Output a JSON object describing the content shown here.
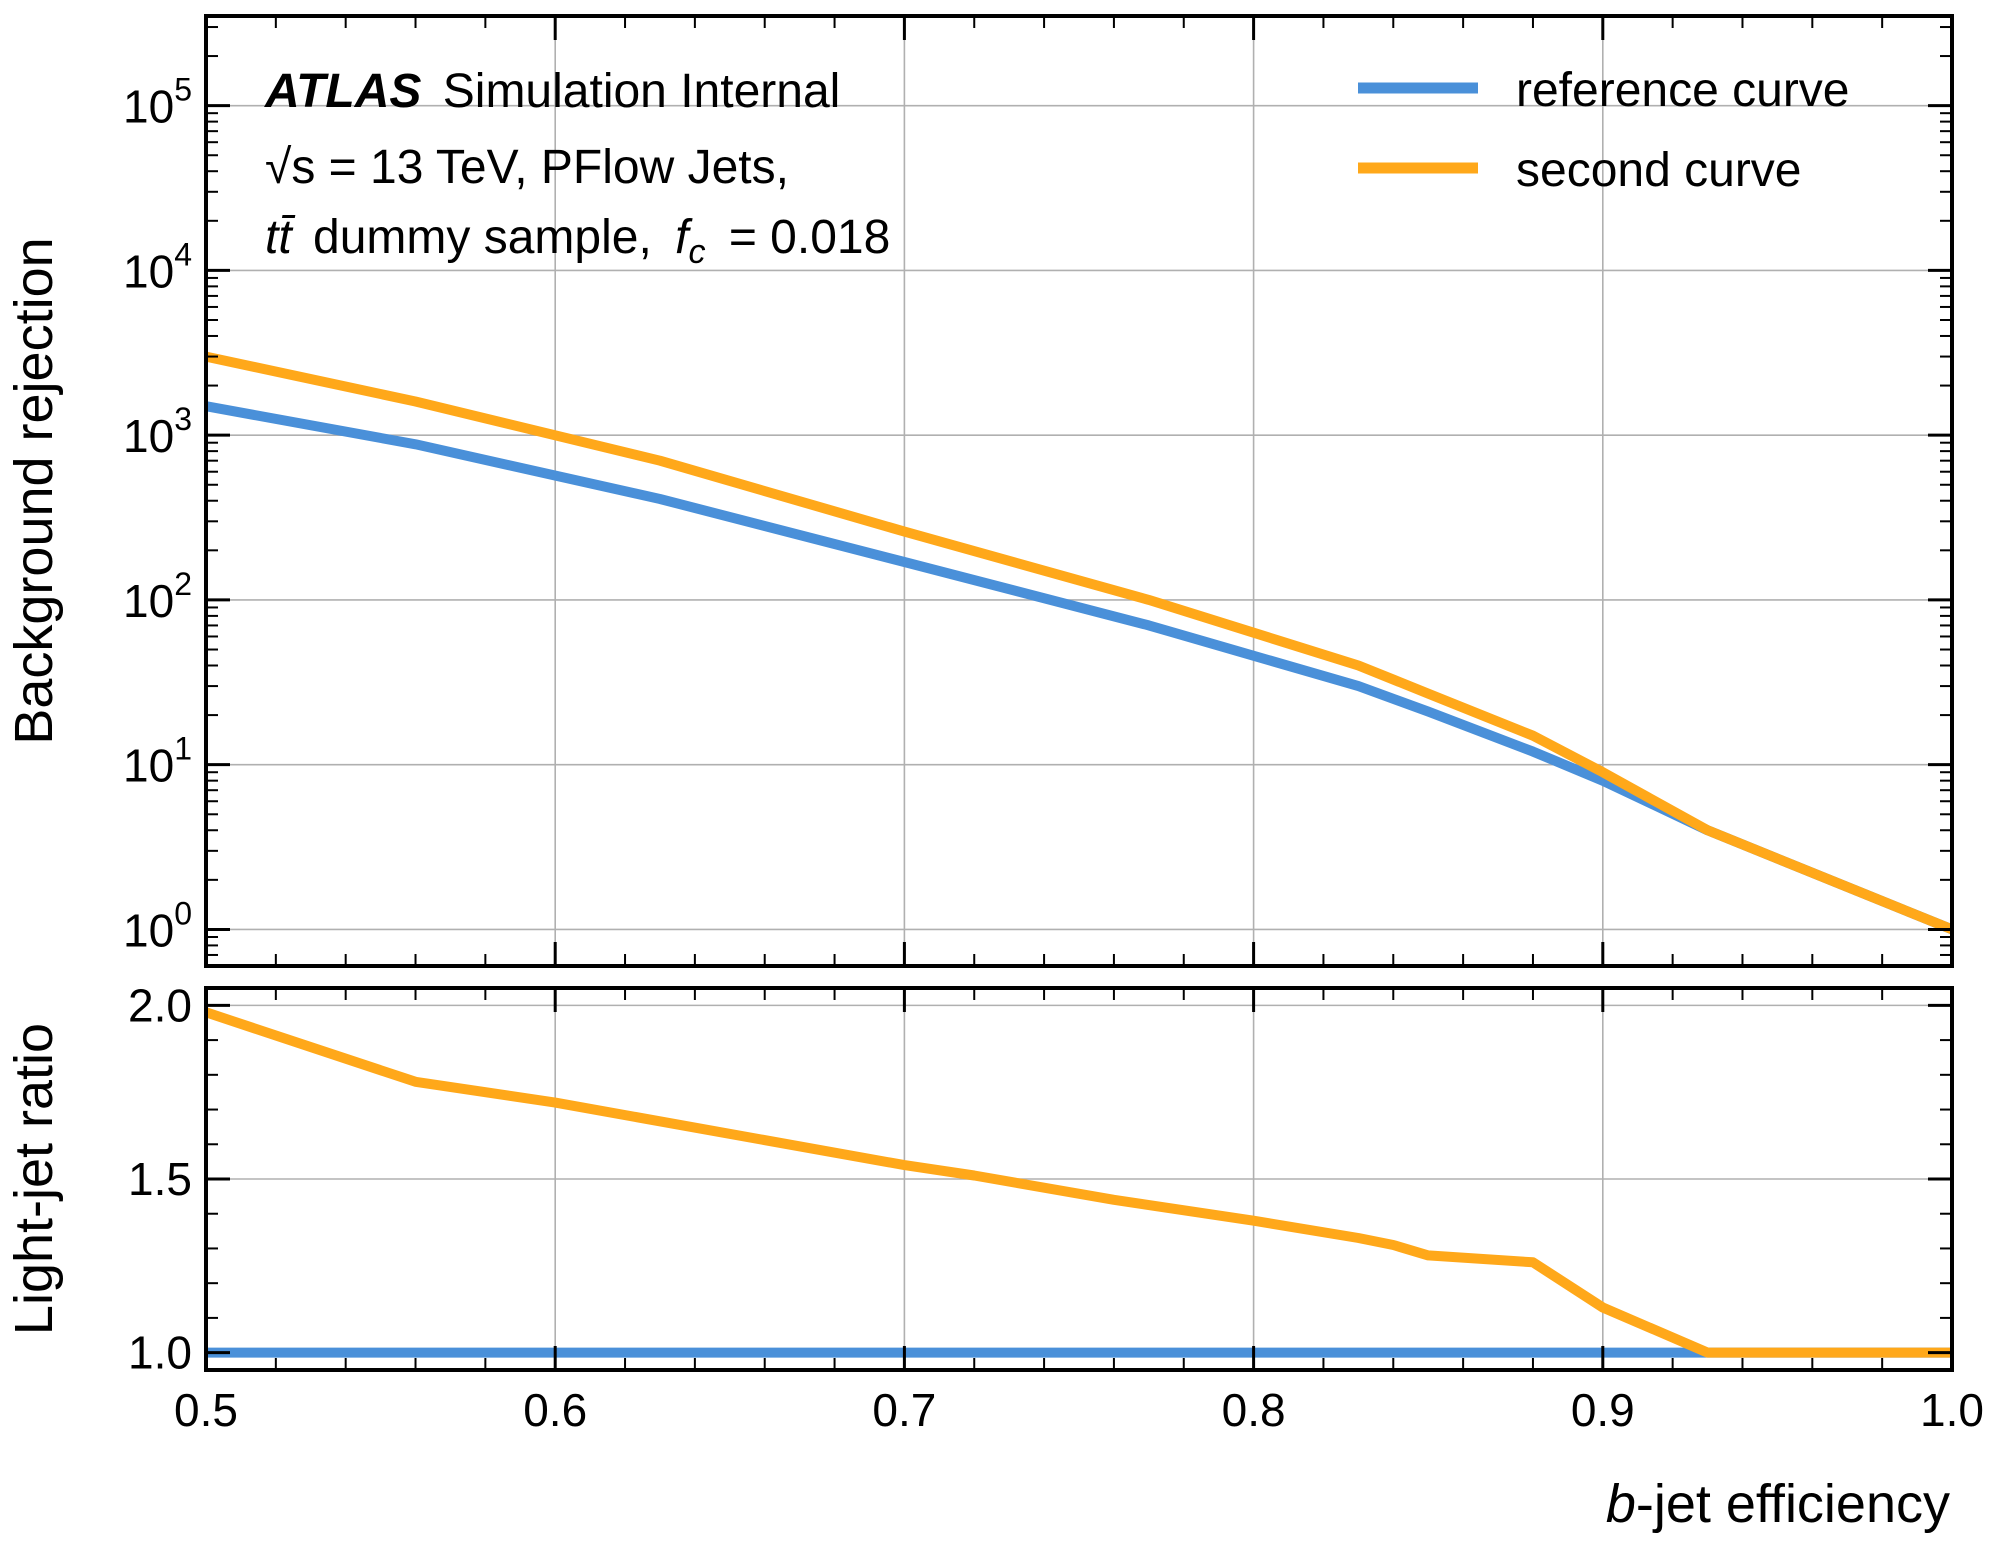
{
  "annotations": {
    "line1_bold": "ATLAS",
    "line1_rest": "Simulation Internal",
    "line2": "√s = 13 TeV, PFlow Jets,",
    "line3_prefix": "tt̄",
    "line3_middle": "dummy sample,",
    "line3_fc": "f",
    "line3_fc_sub": "c",
    "line3_value": "= 0.018"
  },
  "colors": {
    "reference": "#4a90d9",
    "second": "#ffa81a"
  },
  "chart_data": [
    {
      "type": "line",
      "ylabel": "Background rejection",
      "xlim": [
        0.5,
        1.0
      ],
      "ylim": [
        0.6,
        350000.0
      ],
      "yscale": "log",
      "grid": true,
      "legend": "top-right",
      "yticks": [
        1,
        10,
        100,
        1000,
        10000,
        100000
      ],
      "ytick_labels": [
        {
          "base": "10",
          "exp": "0"
        },
        {
          "base": "10",
          "exp": "1"
        },
        {
          "base": "10",
          "exp": "2"
        },
        {
          "base": "10",
          "exp": "3"
        },
        {
          "base": "10",
          "exp": "4"
        },
        {
          "base": "10",
          "exp": "5"
        }
      ],
      "series": [
        {
          "name": "reference curve",
          "color": "#4a90d9",
          "x": [
            0.5,
            0.56,
            0.63,
            0.7,
            0.77,
            0.83,
            0.85,
            0.88,
            0.9,
            0.93,
            1.0
          ],
          "y": [
            1500,
            880,
            410,
            170,
            70,
            30,
            21,
            12,
            8,
            4,
            1
          ]
        },
        {
          "name": "second curve",
          "color": "#ffa81a",
          "x": [
            0.5,
            0.56,
            0.63,
            0.7,
            0.77,
            0.83,
            0.85,
            0.88,
            0.9,
            0.93,
            1.0
          ],
          "y": [
            3000,
            1600,
            700,
            260,
            100,
            40,
            27,
            15,
            9,
            4,
            1
          ]
        }
      ]
    },
    {
      "type": "line",
      "xlabel_italic": "b",
      "xlabel_rest": "-jet efficiency",
      "ylabel": "Light-jet ratio",
      "xlim": [
        0.5,
        1.0
      ],
      "ylim": [
        0.95,
        2.05
      ],
      "grid": true,
      "xticks": [
        0.5,
        0.6,
        0.7,
        0.8,
        0.9,
        1.0
      ],
      "xtick_labels": [
        "0.5",
        "0.6",
        "0.7",
        "0.8",
        "0.9",
        "1.0"
      ],
      "yticks": [
        1.0,
        1.5,
        2.0
      ],
      "ytick_labels": [
        "1.0",
        "1.5",
        "2.0"
      ],
      "series": [
        {
          "color": "#4a90d9",
          "x": [
            0.5,
            1.0
          ],
          "y": [
            1.0,
            1.0
          ]
        },
        {
          "color": "#ffa81a",
          "x": [
            0.5,
            0.56,
            0.6,
            0.7,
            0.72,
            0.76,
            0.8,
            0.83,
            0.84,
            0.85,
            0.88,
            0.9,
            0.93,
            1.0
          ],
          "y": [
            1.98,
            1.78,
            1.72,
            1.54,
            1.51,
            1.44,
            1.38,
            1.33,
            1.31,
            1.28,
            1.26,
            1.13,
            1.0,
            1.0
          ]
        }
      ]
    }
  ]
}
